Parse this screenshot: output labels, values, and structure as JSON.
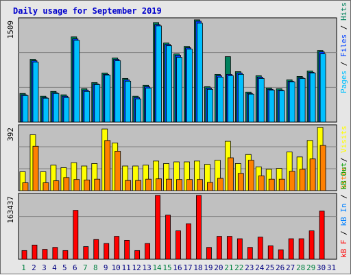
{
  "title": "Daily usage for September 2019",
  "colors": {
    "hits": "#00805c",
    "files": "#0040ff",
    "pages": "#00c0ff",
    "visits": "#ffff00",
    "sites": "#ff8000",
    "kbin": "#0080ff",
    "kbout": "#00a000",
    "kbf": "#ff0000",
    "weekend_label": "#008040",
    "weekday_label": "#000080",
    "panel_bg": "#c0c0c0",
    "grid": "#808080"
  },
  "chart_data": [
    {
      "type": "bar",
      "title": "",
      "ylabel_right": [
        "Pages",
        "Files",
        "Hits"
      ],
      "ymax_label": "1509",
      "ylim": [
        0,
        1509
      ],
      "grid": true,
      "categories": [
        "1",
        "2",
        "3",
        "4",
        "5",
        "6",
        "7",
        "8",
        "9",
        "10",
        "11",
        "12",
        "13",
        "14",
        "15",
        "16",
        "17",
        "18",
        "19",
        "20",
        "21",
        "22",
        "23",
        "24",
        "25",
        "26",
        "27",
        "28",
        "29",
        "30",
        "31"
      ],
      "series": [
        {
          "name": "Hits",
          "values": [
            420,
            920,
            380,
            450,
            400,
            1250,
            490,
            580,
            720,
            940,
            640,
            380,
            540,
            1460,
            1160,
            1000,
            1110,
            1500,
            520,
            700,
            960,
            740,
            440,
            680,
            500,
            490,
            620,
            670,
            750,
            1050,
            0
          ]
        },
        {
          "name": "Files",
          "values": [
            400,
            900,
            360,
            430,
            380,
            1220,
            470,
            560,
            700,
            920,
            620,
            360,
            520,
            1430,
            1140,
            980,
            1090,
            1480,
            500,
            680,
            700,
            720,
            420,
            660,
            480,
            470,
            600,
            650,
            730,
            1030,
            0
          ]
        },
        {
          "name": "Pages",
          "values": [
            390,
            880,
            350,
            420,
            360,
            1200,
            450,
            550,
            690,
            900,
            600,
            340,
            500,
            1410,
            1120,
            950,
            1070,
            1450,
            480,
            660,
            680,
            700,
            410,
            640,
            470,
            460,
            590,
            640,
            720,
            1000,
            0
          ]
        }
      ]
    },
    {
      "type": "bar",
      "title": "",
      "ylabel_right": [
        "Visits",
        "Sites"
      ],
      "ymax_label": "392",
      "ylim": [
        0,
        392
      ],
      "grid": true,
      "categories": [
        "1",
        "2",
        "3",
        "4",
        "5",
        "6",
        "7",
        "8",
        "9",
        "10",
        "11",
        "12",
        "13",
        "14",
        "15",
        "16",
        "17",
        "18",
        "19",
        "20",
        "21",
        "22",
        "23",
        "24",
        "25",
        "26",
        "27",
        "28",
        "29",
        "30",
        "31"
      ],
      "series": [
        {
          "name": "Visits",
          "values": [
            115,
            340,
            115,
            155,
            140,
            170,
            150,
            165,
            375,
            290,
            150,
            150,
            155,
            180,
            165,
            175,
            175,
            180,
            160,
            185,
            300,
            165,
            220,
            145,
            130,
            135,
            235,
            205,
            305,
            385,
            0
          ]
        },
        {
          "name": "Sites",
          "values": [
            48,
            270,
            48,
            60,
            80,
            68,
            65,
            70,
            305,
            240,
            62,
            62,
            70,
            72,
            70,
            68,
            68,
            68,
            50,
            75,
            200,
            105,
            185,
            90,
            70,
            70,
            118,
            130,
            193,
            275,
            0
          ]
        }
      ]
    },
    {
      "type": "bar",
      "title": "",
      "ylabel_right": [
        "kB F",
        "kB In",
        "kB Out"
      ],
      "ymax_label": "163437",
      "ylim": [
        0,
        163437
      ],
      "grid": true,
      "categories": [
        "1",
        "2",
        "3",
        "4",
        "5",
        "6",
        "7",
        "8",
        "9",
        "10",
        "11",
        "12",
        "13",
        "14",
        "15",
        "16",
        "17",
        "18",
        "19",
        "20",
        "21",
        "22",
        "23",
        "24",
        "25",
        "26",
        "27",
        "28",
        "29",
        "30",
        "31"
      ],
      "series": [
        {
          "name": "kB F",
          "values": [
            22000,
            36000,
            25000,
            30000,
            22000,
            124000,
            32000,
            50000,
            40000,
            58000,
            48000,
            22000,
            40000,
            162000,
            112000,
            72000,
            90000,
            162000,
            30000,
            58000,
            58000,
            52000,
            30000,
            56000,
            34000,
            24000,
            52000,
            52000,
            72000,
            122000,
            0
          ]
        },
        {
          "name": "kB In",
          "values": [
            0,
            0,
            0,
            0,
            0,
            0,
            0,
            0,
            0,
            0,
            0,
            0,
            0,
            0,
            0,
            0,
            0,
            0,
            0,
            0,
            0,
            0,
            0,
            0,
            0,
            0,
            0,
            0,
            0,
            0,
            0
          ]
        },
        {
          "name": "kB Out",
          "values": [
            0,
            0,
            0,
            0,
            0,
            0,
            0,
            0,
            0,
            0,
            0,
            0,
            0,
            0,
            0,
            0,
            0,
            0,
            0,
            0,
            0,
            0,
            0,
            0,
            0,
            0,
            0,
            0,
            0,
            0,
            0
          ]
        }
      ]
    }
  ],
  "days": [
    "1",
    "2",
    "3",
    "4",
    "5",
    "6",
    "7",
    "8",
    "9",
    "10",
    "11",
    "12",
    "13",
    "14",
    "15",
    "16",
    "17",
    "18",
    "19",
    "20",
    "21",
    "22",
    "23",
    "24",
    "25",
    "26",
    "27",
    "28",
    "29",
    "30",
    "31"
  ],
  "weekend_days": [
    "1",
    "7",
    "8",
    "14",
    "15",
    "21",
    "22",
    "28",
    "29"
  ]
}
